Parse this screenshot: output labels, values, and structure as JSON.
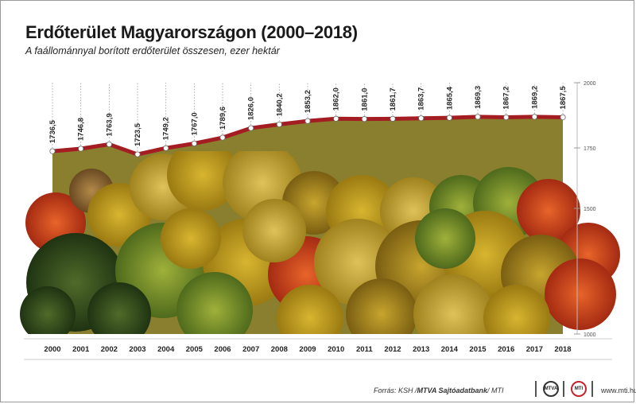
{
  "title": "Erdőterület Magyarországon (2000–2018)",
  "subtitle": "A faállománnyal borított erdőterület összesen, ezer hektár",
  "footer": {
    "source_prefix": "Forrás: KSH / ",
    "source_bold": "MTVA Sajtóadatbank",
    "source_suffix": " / MTI",
    "logo1": "MTVA",
    "logo2": "MTI",
    "site": "www.mti.hu"
  },
  "colors": {
    "line": "#a31d23",
    "area": "#8a7f2e",
    "marker_fill": "#ffffff"
  },
  "chart_data": {
    "type": "line",
    "x": [
      "2000",
      "2001",
      "2002",
      "2003",
      "2004",
      "2005",
      "2006",
      "2007",
      "2008",
      "2009",
      "2010",
      "2011",
      "2012",
      "2013",
      "2014",
      "2015",
      "2016",
      "2017",
      "2018"
    ],
    "labels": [
      "1736,5",
      "1746,8",
      "1763,9",
      "1723,5",
      "1749,2",
      "1767,0",
      "1789,6",
      "1826,0",
      "1840,2",
      "1853,2",
      "1862,0",
      "1861,0",
      "1861,7",
      "1863,7",
      "1865,4",
      "1869,3",
      "1867,2",
      "1869,2",
      "1867,5"
    ],
    "values": [
      1736.5,
      1746.8,
      1763.9,
      1723.5,
      1749.2,
      1767.0,
      1789.6,
      1826.0,
      1840.2,
      1853.2,
      1862.0,
      1861.0,
      1861.7,
      1863.7,
      1865.4,
      1869.3,
      1867.2,
      1869.2,
      1867.5
    ],
    "ylim": [
      1000,
      2000
    ],
    "yticks": [
      "1000",
      "1500",
      "1750",
      "2000"
    ],
    "title": "Erdőterület Magyarországon (2000–2018)",
    "subtitle": "A faállománnyal borított erdőterület összesen, ezer hektár",
    "xlabel": "",
    "ylabel": "",
    "grid": false,
    "legend": "none"
  }
}
